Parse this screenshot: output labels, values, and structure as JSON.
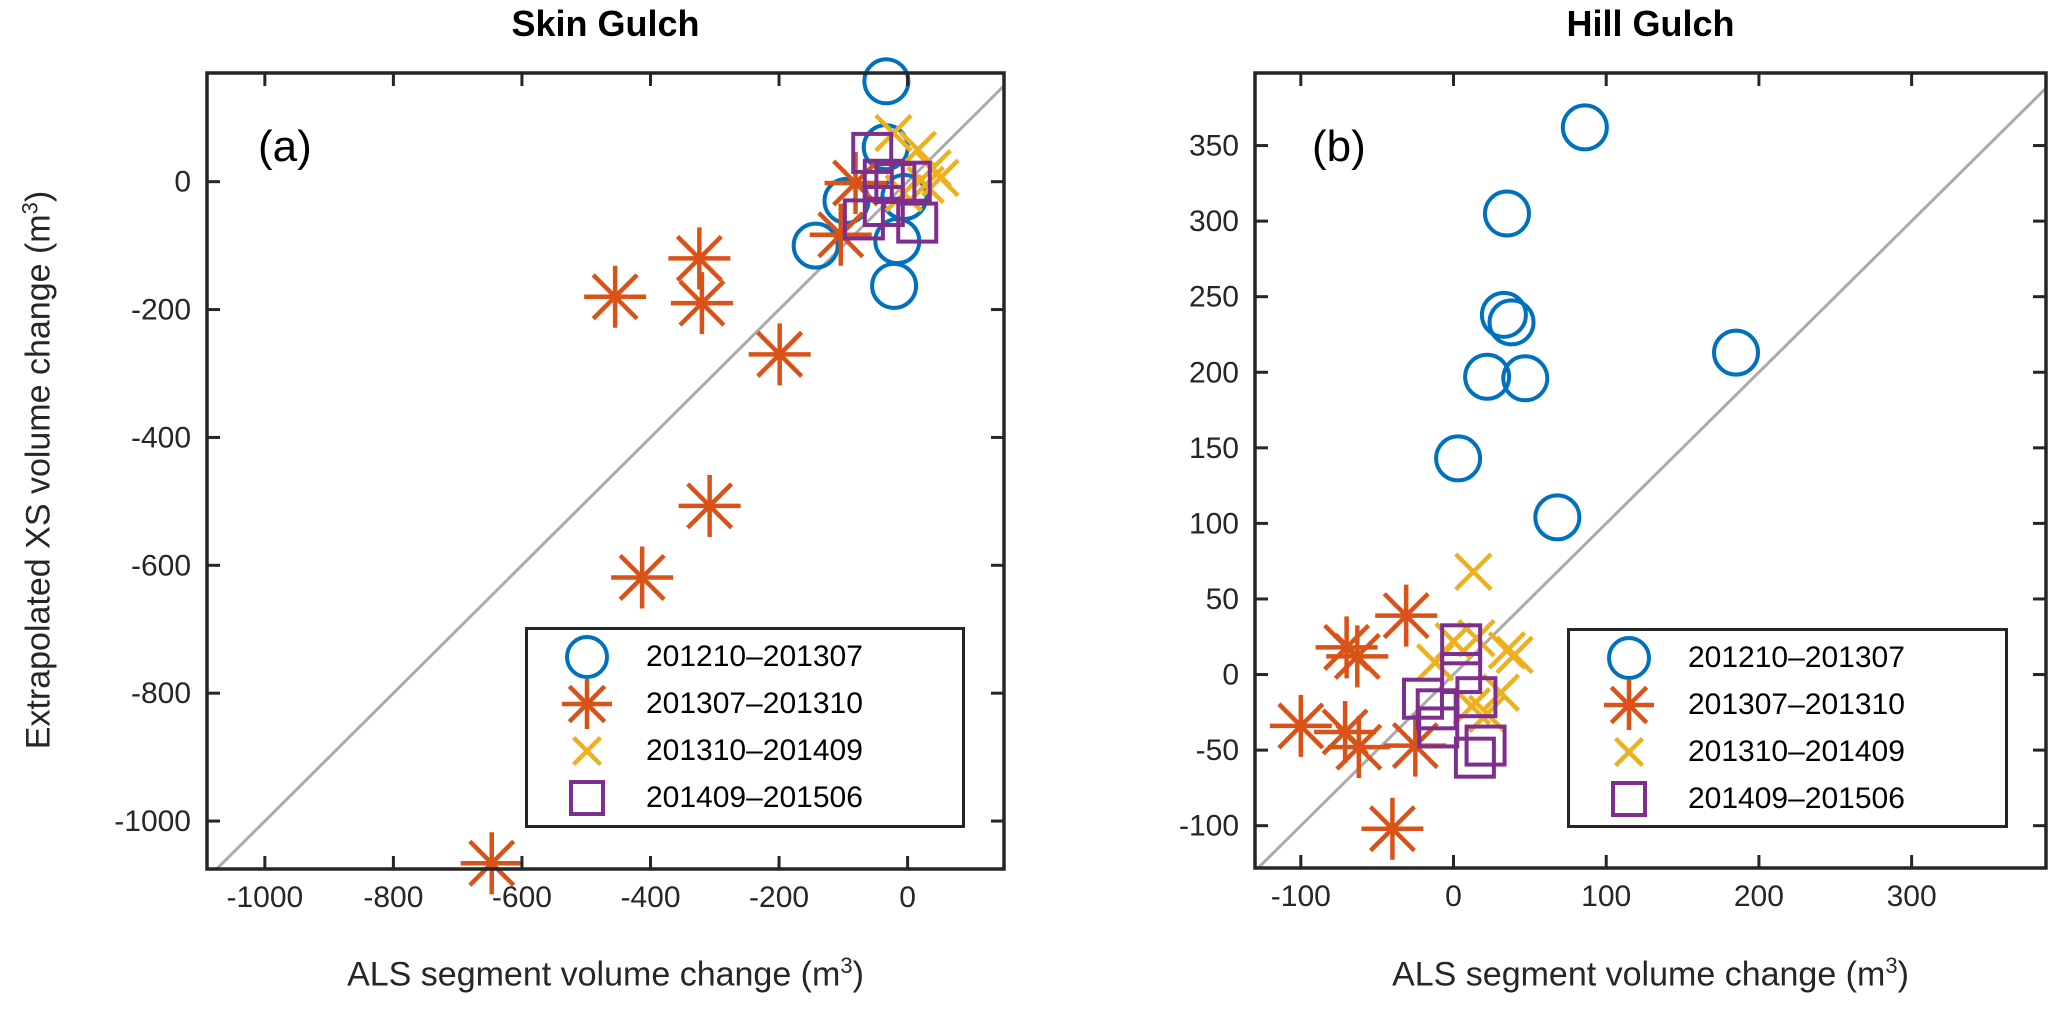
{
  "styles": {
    "axis_color": "#262626",
    "identity_color": "#ABABAB",
    "background": "#ffffff",
    "series_colors": {
      "circle": "#0072BD",
      "asterisk": "#D95319",
      "cross": "#EDB120",
      "square": "#7E2F8E"
    }
  },
  "axis_labels": {
    "y_pre": "Extrapolated XS volume change (m",
    "y_sup": "3",
    "y_post": ")",
    "x_pre": "ALS segment volume change (m",
    "x_sup": "3",
    "x_post": ")"
  },
  "legend": {
    "items": [
      {
        "label": "201210–201307",
        "marker": "circle",
        "color": "#0072BD"
      },
      {
        "label": "201307–201310",
        "marker": "asterisk",
        "color": "#D95319"
      },
      {
        "label": "201310–201409",
        "marker": "cross",
        "color": "#EDB120"
      },
      {
        "label": "201409–201506",
        "marker": "square",
        "color": "#7E2F8E"
      }
    ]
  },
  "chart_data": [
    {
      "type": "scatter",
      "title": "Skin Gulch",
      "panel_label": "(a)",
      "xlabel": "ALS segment volume change (m3)",
      "ylabel": "Extrapolated XS volume change (m3)",
      "xlim": [
        -1090,
        150
      ],
      "ylim": [
        -1075,
        170
      ],
      "xticks": [
        -1000,
        -800,
        -600,
        -400,
        -200,
        0
      ],
      "yticks": [
        -1000,
        -800,
        -600,
        -400,
        -200,
        0
      ],
      "identity_line": true,
      "grid": false,
      "legend_position": "bottom-right-inside",
      "series": [
        {
          "name": "201210–201307",
          "marker": "circle",
          "color": "#0072BD",
          "points": [
            [
              -33,
              157
            ],
            [
              -34,
              54
            ],
            [
              -5,
              -24
            ],
            [
              -95,
              -30
            ],
            [
              -143,
              -100
            ],
            [
              -16,
              -93
            ],
            [
              -21,
              -163
            ]
          ]
        },
        {
          "name": "201307–201310",
          "marker": "asterisk",
          "color": "#D95319",
          "points": [
            [
              -455,
              -180
            ],
            [
              -324,
              -120
            ],
            [
              -320,
              -190
            ],
            [
              -199,
              -270
            ],
            [
              -308,
              -507
            ],
            [
              -413,
              -619
            ],
            [
              -647,
              -1066
            ],
            [
              -81,
              -2
            ],
            [
              -104,
              -83
            ]
          ]
        },
        {
          "name": "201310–201409",
          "marker": "cross",
          "color": "#EDB120",
          "points": [
            [
              -22,
              76
            ],
            [
              16,
              50
            ],
            [
              39,
              21
            ],
            [
              51,
              6
            ],
            [
              -6,
              -18
            ],
            [
              28,
              -5
            ]
          ]
        },
        {
          "name": "201409–201506",
          "marker": "square",
          "color": "#7E2F8E",
          "points": [
            [
              -55,
              45
            ],
            [
              -37,
              3
            ],
            [
              -19,
              -2
            ],
            [
              5,
              0
            ],
            [
              -37,
              -38
            ],
            [
              -68,
              -59
            ],
            [
              15,
              -64
            ]
          ]
        }
      ]
    },
    {
      "type": "scatter",
      "title": "Hill Gulch",
      "panel_label": "(b)",
      "xlabel": "ALS segment volume change (m3)",
      "ylabel": "",
      "xlim": [
        -130,
        388
      ],
      "ylim": [
        -128,
        398
      ],
      "xticks": [
        -100,
        0,
        100,
        200,
        300
      ],
      "yticks": [
        -100,
        -50,
        0,
        50,
        100,
        150,
        200,
        250,
        300,
        350
      ],
      "identity_line": true,
      "grid": false,
      "legend_position": "bottom-right-inside",
      "series": [
        {
          "name": "201210–201307",
          "marker": "circle",
          "color": "#0072BD",
          "points": [
            [
              86,
              362
            ],
            [
              35,
              305
            ],
            [
              33,
              238
            ],
            [
              38,
              233
            ],
            [
              22,
              197
            ],
            [
              47,
              196
            ],
            [
              3,
              143
            ],
            [
              68,
              104
            ],
            [
              185,
              213
            ]
          ]
        },
        {
          "name": "201307–201310",
          "marker": "asterisk",
          "color": "#D95319",
          "points": [
            [
              -31,
              39
            ],
            [
              -70,
              18
            ],
            [
              -63,
              12
            ],
            [
              -100,
              -34
            ],
            [
              -71,
              -38
            ],
            [
              -62,
              -48
            ],
            [
              -25,
              -47
            ],
            [
              -40,
              -102
            ]
          ]
        },
        {
          "name": "201310–201409",
          "marker": "cross",
          "color": "#EDB120",
          "points": [
            [
              13,
              68
            ],
            [
              0,
              22
            ],
            [
              15,
              24
            ],
            [
              35,
              16
            ],
            [
              40,
              13
            ],
            [
              -12,
              8
            ],
            [
              12,
              -21
            ],
            [
              22,
              -26
            ],
            [
              31,
              -12
            ]
          ]
        },
        {
          "name": "201409–201506",
          "marker": "square",
          "color": "#7E2F8E",
          "points": [
            [
              5,
              20
            ],
            [
              5,
              1
            ],
            [
              -20,
              -16
            ],
            [
              -11,
              -23
            ],
            [
              -10,
              -35
            ],
            [
              15,
              -15
            ],
            [
              21,
              -47
            ],
            [
              14,
              -55
            ]
          ]
        }
      ]
    }
  ]
}
